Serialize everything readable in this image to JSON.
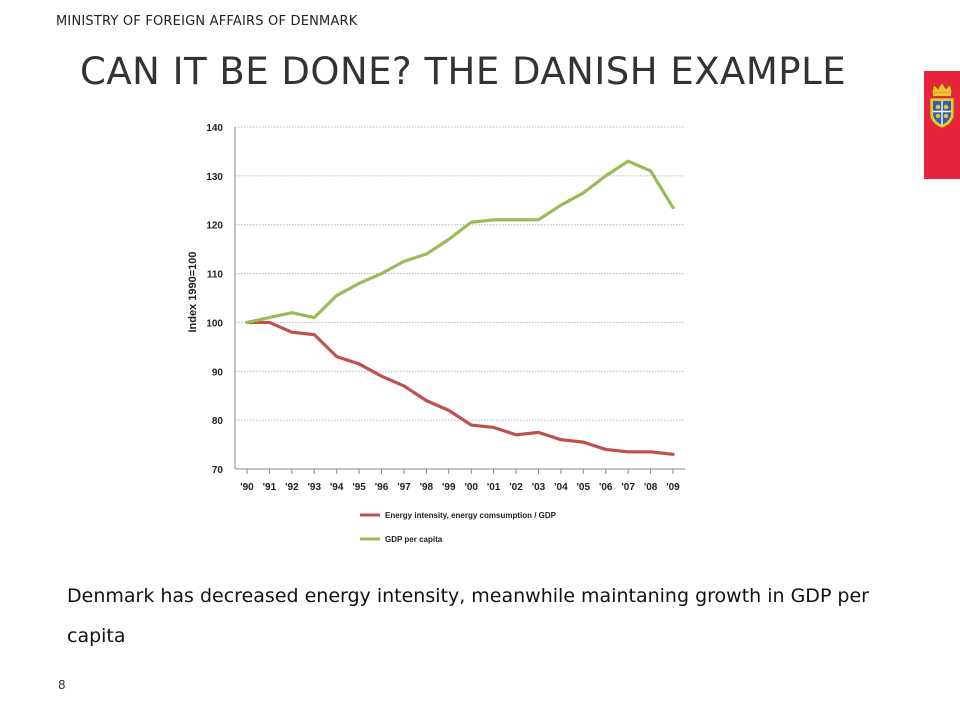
{
  "header": {
    "ministry": "MINISTRY OF FOREIGN AFFAIRS OF DENMARK",
    "title": "CAN IT BE DONE? THE DANISH EXAMPLE",
    "logo": "danish-coat-of-arms-icon",
    "accent_color": "#e8243c"
  },
  "chart_data": {
    "type": "line",
    "ylabel": "Index 1990=100",
    "xlabel": "",
    "ylim": [
      70,
      140
    ],
    "yticks": [
      70,
      80,
      90,
      100,
      110,
      120,
      130,
      140
    ],
    "grid": true,
    "legend_position": "bottom",
    "categories": [
      "'90",
      "'91",
      "'92",
      "'93",
      "'94",
      "'95",
      "'96",
      "'97",
      "'98",
      "'99",
      "'00",
      "'01",
      "'02",
      "'03",
      "'04",
      "'05",
      "'06",
      "'07",
      "'08",
      "'09"
    ],
    "series": [
      {
        "name": "Energy intensity, energy comsumption / GDP",
        "color": "#c0504d",
        "values": [
          100,
          100,
          98,
          97.5,
          93,
          91.5,
          89,
          87,
          84,
          82,
          79,
          78.5,
          77,
          77.5,
          76,
          75.5,
          74,
          73.5,
          73.5,
          73
        ]
      },
      {
        "name": "GDP per capita",
        "color": "#9bbb59",
        "values": [
          100,
          101,
          102,
          101,
          105.5,
          108,
          110,
          112.5,
          114,
          117,
          120.5,
          121,
          121,
          121,
          124,
          126.5,
          130,
          133,
          131,
          123.5
        ]
      }
    ]
  },
  "caption": "Denmark has decreased energy intensity, meanwhile maintaning growth in GDP per capita",
  "page_number": "8"
}
